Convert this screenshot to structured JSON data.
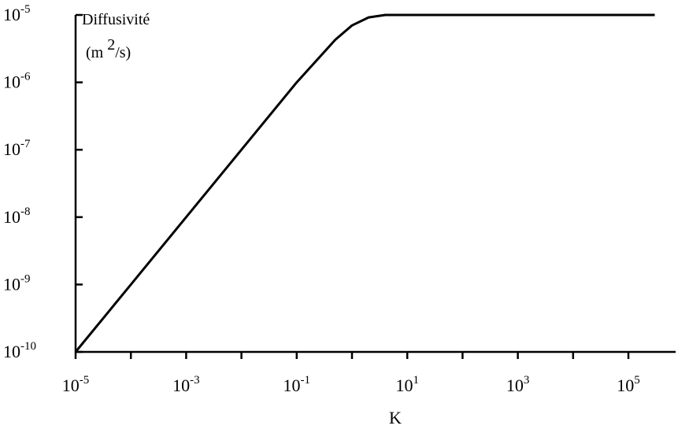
{
  "chart_data": {
    "type": "line",
    "title": "",
    "xlabel": "K",
    "ylabel_line1": "Diffusivité",
    "ylabel_line2_base": "(m ",
    "ylabel_line2_sup": "2",
    "ylabel_line2_end": "/s)",
    "x_scale": "log",
    "y_scale": "log",
    "xlim": [
      1e-05,
      1000000.0
    ],
    "ylim": [
      1e-10,
      1e-05
    ],
    "x_tick_labels": [
      {
        "base": "10",
        "exp": "-5"
      },
      {
        "base": "10",
        "exp": "-3"
      },
      {
        "base": "10",
        "exp": "-1"
      },
      {
        "base": "10",
        "exp": "1"
      },
      {
        "base": "10",
        "exp": "3"
      },
      {
        "base": "10",
        "exp": "5"
      }
    ],
    "y_tick_labels": [
      {
        "base": "10",
        "exp": "-10"
      },
      {
        "base": "10",
        "exp": "-9"
      },
      {
        "base": "10",
        "exp": "-8"
      },
      {
        "base": "10",
        "exp": "-7"
      },
      {
        "base": "10",
        "exp": "-6"
      },
      {
        "base": "10",
        "exp": "-5"
      }
    ],
    "grid": false,
    "legend": "none",
    "line_color": "#000000",
    "series": [
      {
        "x": [
          1e-05,
          0.0001,
          0.001,
          0.01,
          0.1,
          0.5,
          1,
          2,
          4,
          10,
          100,
          1000,
          10000.0,
          100000.0,
          300000.0
        ],
        "y": [
          1e-10,
          1e-09,
          1e-08,
          1e-07,
          1e-06,
          4.3e-06,
          7e-06,
          9.2e-06,
          1e-05,
          1e-05,
          1e-05,
          1e-05,
          1e-05,
          1e-05,
          1e-05
        ]
      }
    ]
  }
}
